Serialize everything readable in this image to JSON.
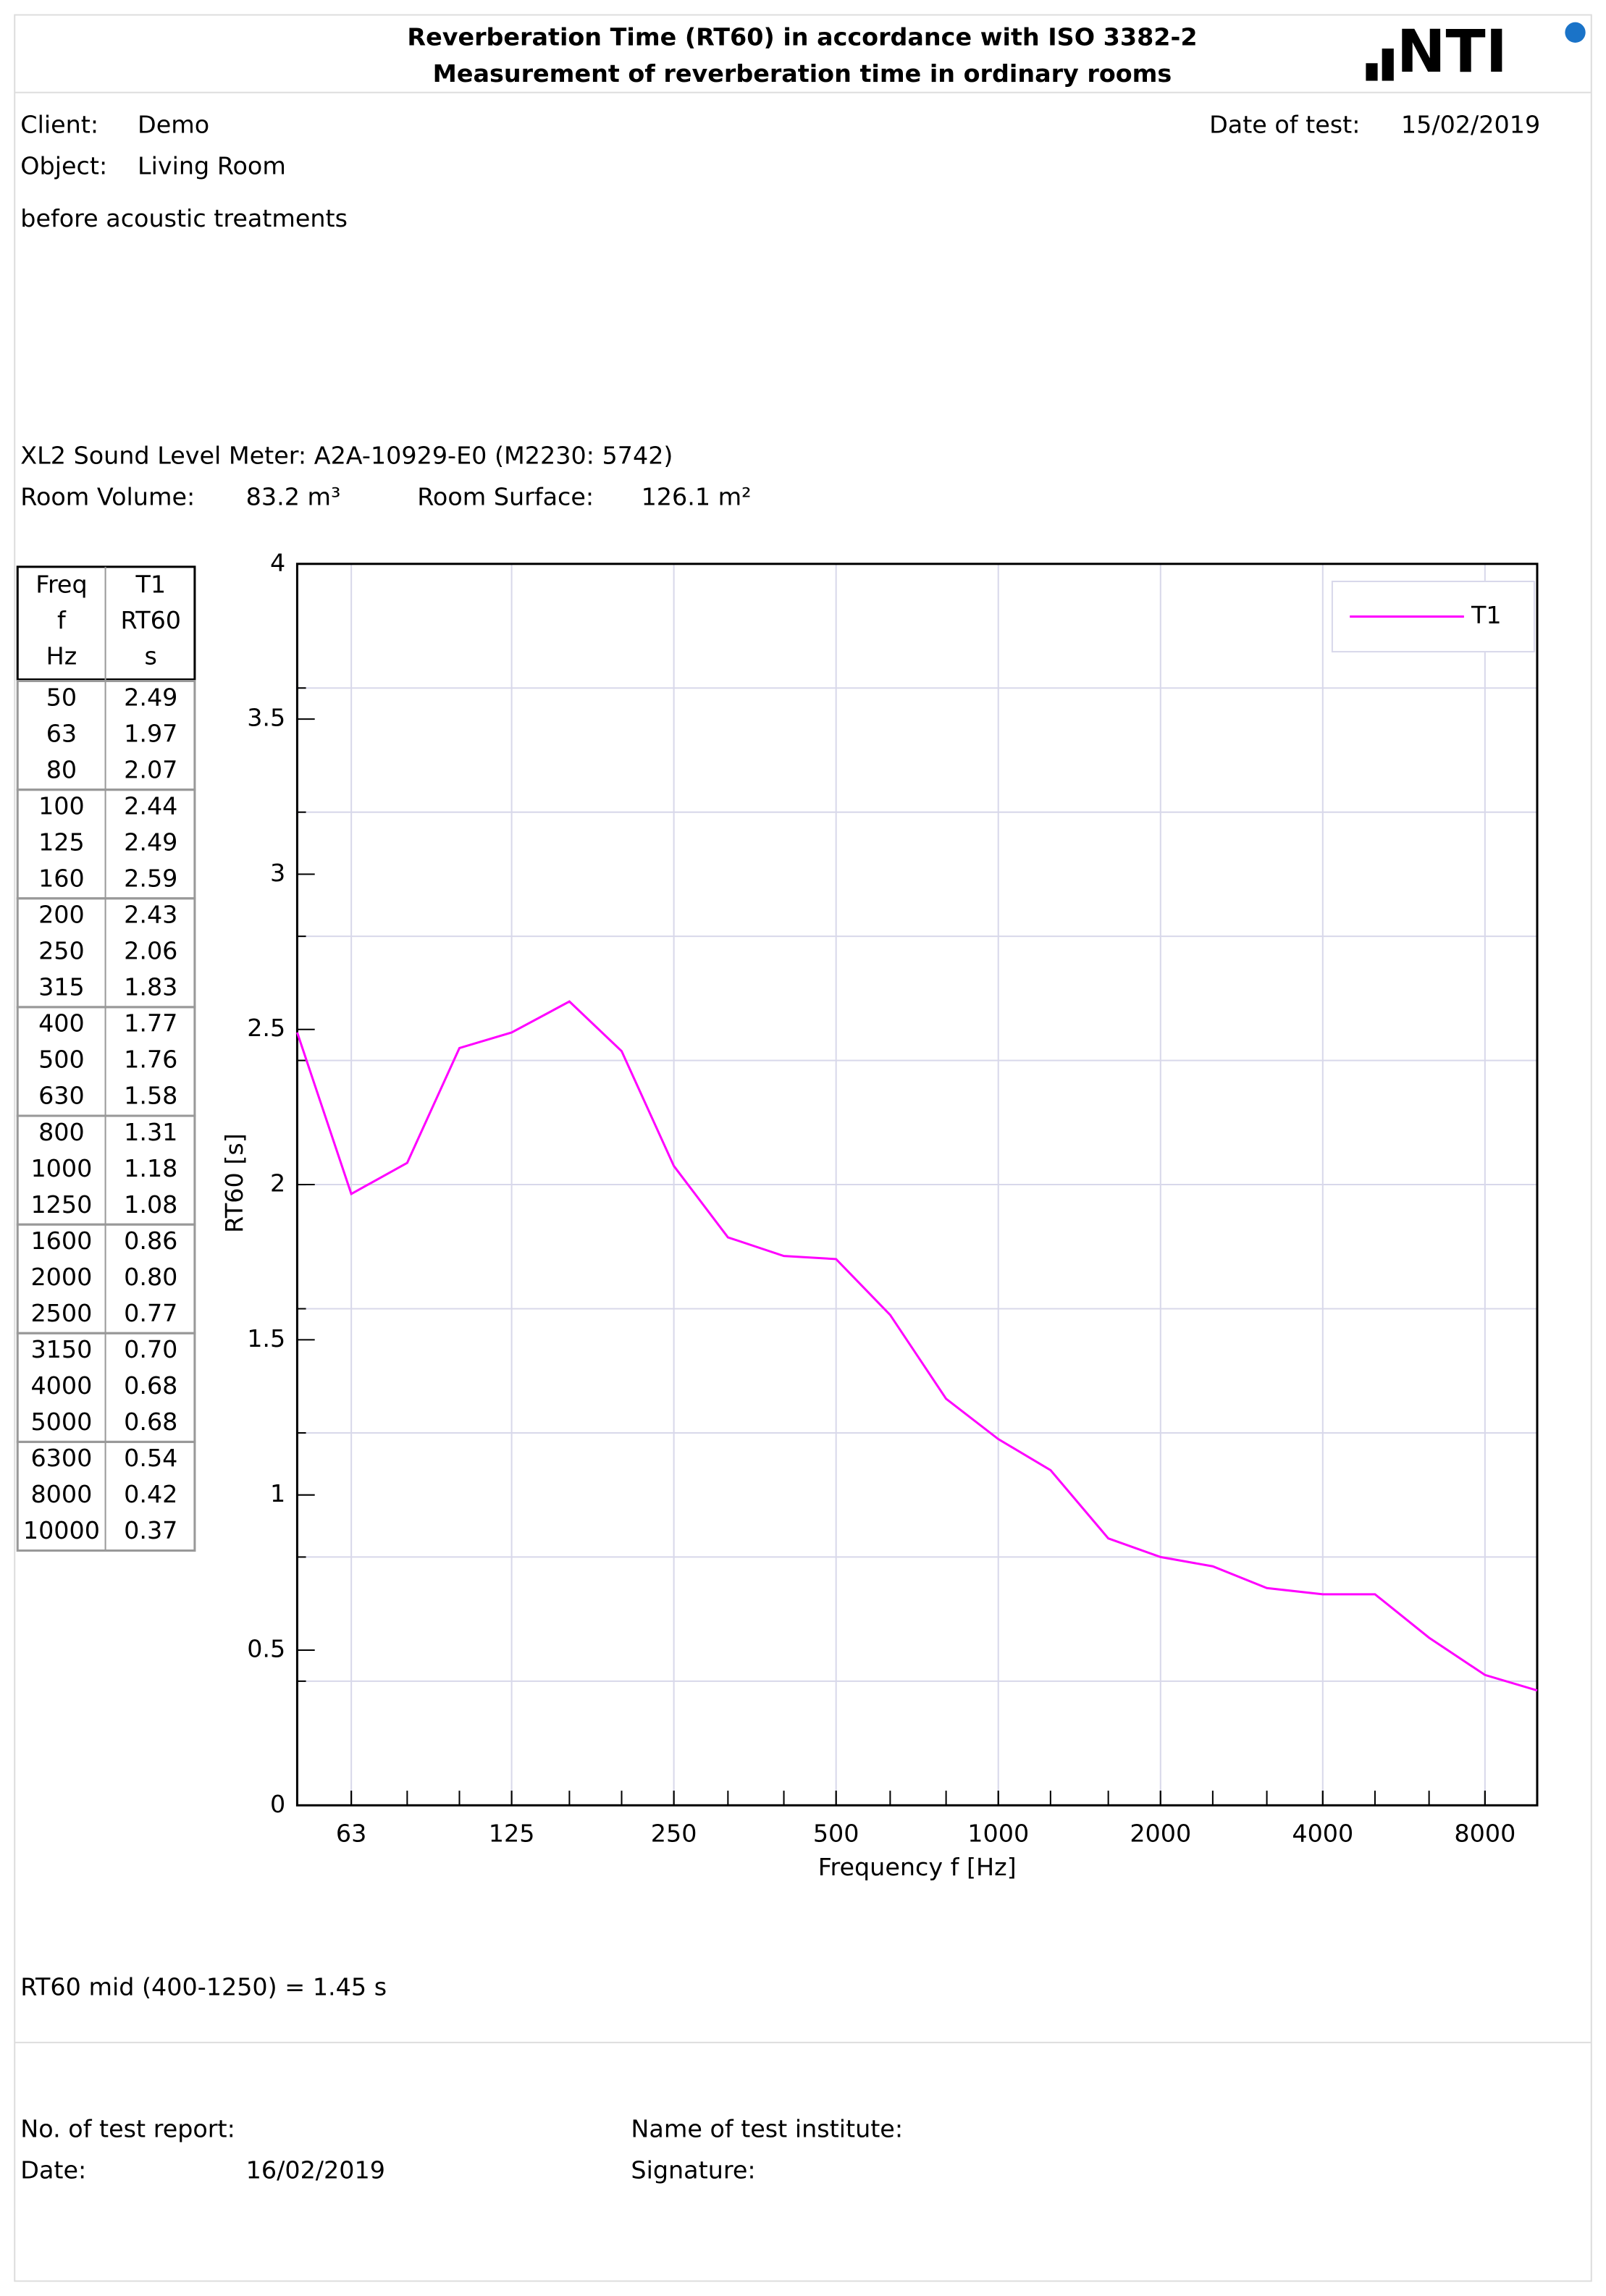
{
  "header": {
    "title": "Reverberation Time (RT60) in accordance with ISO 3382-2",
    "subtitle": "Measurement of reverberation time in ordinary rooms",
    "logo": "NTI"
  },
  "info": {
    "client_label": "Client:",
    "client": "Demo",
    "object_label": "Object:",
    "object": "Living Room",
    "date_label": "Date of test:",
    "date": "15/02/2019",
    "note": "before acoustic treatments",
    "meter": "XL2 Sound Level Meter: A2A-10929-E0 (M2230: 5742)",
    "volume_label": "Room Volume:",
    "volume": "83.2 m³",
    "surface_label": "Room Surface:",
    "surface": "126.1 m²"
  },
  "table": {
    "header": [
      [
        "Freq",
        "f",
        "Hz"
      ],
      [
        "T1",
        "RT60",
        "s"
      ]
    ],
    "rows": [
      [
        "50",
        "2.49"
      ],
      [
        "63",
        "1.97"
      ],
      [
        "80",
        "2.07"
      ],
      [
        "100",
        "2.44"
      ],
      [
        "125",
        "2.49"
      ],
      [
        "160",
        "2.59"
      ],
      [
        "200",
        "2.43"
      ],
      [
        "250",
        "2.06"
      ],
      [
        "315",
        "1.83"
      ],
      [
        "400",
        "1.77"
      ],
      [
        "500",
        "1.76"
      ],
      [
        "630",
        "1.58"
      ],
      [
        "800",
        "1.31"
      ],
      [
        "1000",
        "1.18"
      ],
      [
        "1250",
        "1.08"
      ],
      [
        "1600",
        "0.86"
      ],
      [
        "2000",
        "0.80"
      ],
      [
        "2500",
        "0.77"
      ],
      [
        "3150",
        "0.70"
      ],
      [
        "4000",
        "0.68"
      ],
      [
        "5000",
        "0.68"
      ],
      [
        "6300",
        "0.54"
      ],
      [
        "8000",
        "0.42"
      ],
      [
        "10000",
        "0.37"
      ]
    ]
  },
  "chart_data": {
    "type": "line",
    "x": [
      50,
      63,
      80,
      100,
      125,
      160,
      200,
      250,
      315,
      400,
      500,
      630,
      800,
      1000,
      1250,
      1600,
      2000,
      2500,
      3150,
      4000,
      5000,
      6300,
      8000,
      10000
    ],
    "series": [
      {
        "name": "T1",
        "color": "#ff00ff",
        "values": [
          2.49,
          1.97,
          2.07,
          2.44,
          2.49,
          2.59,
          2.43,
          2.06,
          1.83,
          1.77,
          1.76,
          1.58,
          1.31,
          1.18,
          1.08,
          0.86,
          0.8,
          0.77,
          0.7,
          0.68,
          0.68,
          0.54,
          0.42,
          0.37
        ]
      }
    ],
    "xlim": [
      50,
      10000
    ],
    "xscale": "log",
    "xticks": [
      63,
      125,
      250,
      500,
      1000,
      2000,
      4000,
      8000
    ],
    "ylim": [
      0,
      4
    ],
    "yticks": [
      0,
      0.5,
      1,
      1.5,
      2,
      2.5,
      3,
      3.5,
      4
    ],
    "ygrid": [
      0.4,
      0.8,
      1.2,
      1.6,
      2,
      2.4,
      2.8,
      3.2,
      3.6
    ],
    "xlabel": "Frequency f [Hz]",
    "ylabel": "RT60 [s]",
    "grid": true,
    "legend": "upper right"
  },
  "summary": "RT60 mid (400-1250) = 1.45 s",
  "footer": {
    "report_label": "No. of test report:",
    "date_label": "Date:",
    "date": "16/02/2019",
    "institute_label": "Name of test institute:",
    "signature_label": "Signature:"
  }
}
